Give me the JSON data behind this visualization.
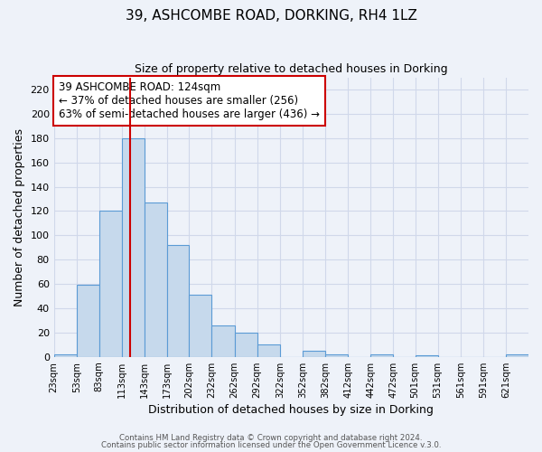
{
  "title": "39, ASHCOMBE ROAD, DORKING, RH4 1LZ",
  "subtitle": "Size of property relative to detached houses in Dorking",
  "xlabel": "Distribution of detached houses by size in Dorking",
  "ylabel": "Number of detached properties",
  "bar_color": "#c6d9ec",
  "bar_edge_color": "#5b9bd5",
  "vline_x": 124,
  "vline_color": "#cc0000",
  "bins_left": [
    23,
    53,
    83,
    113,
    143,
    173,
    202,
    232,
    262,
    292,
    322,
    352,
    382,
    412,
    442,
    472,
    501,
    531,
    561,
    591,
    621
  ],
  "bin_labels": [
    "23sqm",
    "53sqm",
    "83sqm",
    "113sqm",
    "143sqm",
    "173sqm",
    "202sqm",
    "232sqm",
    "262sqm",
    "292sqm",
    "322sqm",
    "352sqm",
    "382sqm",
    "412sqm",
    "442sqm",
    "472sqm",
    "501sqm",
    "531sqm",
    "561sqm",
    "591sqm",
    "621sqm"
  ],
  "bar_heights": [
    2,
    59,
    120,
    180,
    127,
    92,
    51,
    26,
    20,
    10,
    0,
    5,
    2,
    0,
    2,
    0,
    1,
    0,
    0,
    0,
    2
  ],
  "ylim": [
    0,
    230
  ],
  "yticks": [
    0,
    20,
    40,
    60,
    80,
    100,
    120,
    140,
    160,
    180,
    200,
    220
  ],
  "annotation_title": "39 ASHCOMBE ROAD: 124sqm",
  "annotation_line1": "← 37% of detached houses are smaller (256)",
  "annotation_line2": "63% of semi-detached houses are larger (436) →",
  "footer1": "Contains HM Land Registry data © Crown copyright and database right 2024.",
  "footer2": "Contains public sector information licensed under the Open Government Licence v.3.0.",
  "background_color": "#eef2f9",
  "grid_color": "#d0d8ea",
  "fig_bg_color": "#eef2f9"
}
